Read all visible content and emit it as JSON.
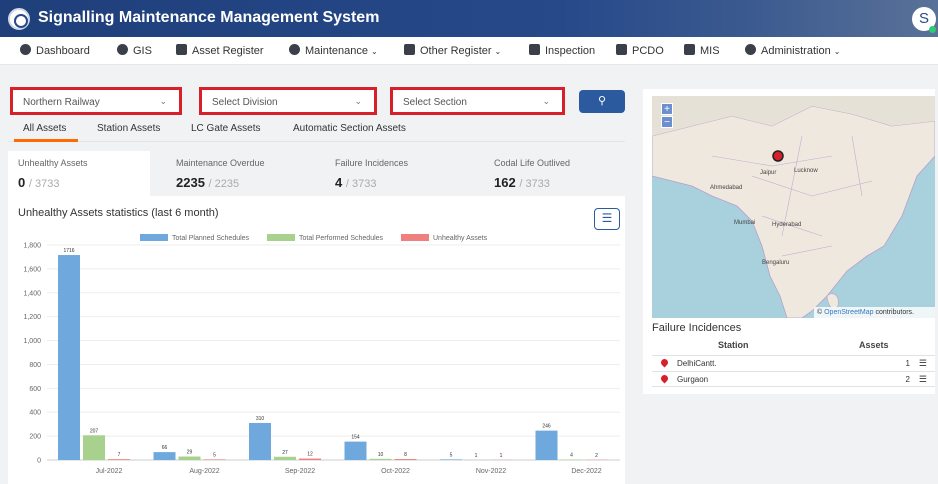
{
  "header": {
    "title": "Signalling Maintenance Management System",
    "user_initial": "S"
  },
  "nav": {
    "items": [
      {
        "label": "Dashboard",
        "icon": "dashboard-icon"
      },
      {
        "label": "GIS",
        "icon": "map-pin-icon"
      },
      {
        "label": "Asset Register",
        "icon": "tools-icon"
      },
      {
        "label": "Maintenance",
        "icon": "gear-icon",
        "dropdown": true
      },
      {
        "label": "Other Register",
        "icon": "tools-icon",
        "dropdown": true
      },
      {
        "label": "Inspection",
        "icon": "checkbox-icon"
      },
      {
        "label": "PCDO",
        "icon": "document-icon"
      },
      {
        "label": "MIS",
        "icon": "save-icon"
      },
      {
        "label": "Administration",
        "icon": "user-icon",
        "dropdown": true
      }
    ]
  },
  "filters": {
    "railway": "Northern Railway",
    "division": "Select Division",
    "section": "Select Section"
  },
  "tabs": [
    "All Assets",
    "Station Assets",
    "LC Gate Assets",
    "Automatic Section Assets"
  ],
  "stats": [
    {
      "label": "Unhealthy Assets",
      "value": "0",
      "total": "/ 3733"
    },
    {
      "label": "Maintenance Overdue",
      "value": "2235",
      "total": "/ 2235"
    },
    {
      "label": "Failure Incidences",
      "value": "4",
      "total": "/ 3733"
    },
    {
      "label": "Codal Life Outlived",
      "value": "162",
      "total": "/ 3733"
    }
  ],
  "chart_title": "Unhealthy Assets statistics (last 6 month)",
  "chart_data": {
    "type": "bar",
    "categories": [
      "Jul-2022",
      "Aug-2022",
      "Sep-2022",
      "Oct-2022",
      "Nov-2022",
      "Dec-2022"
    ],
    "series": [
      {
        "name": "Total Planned Schedules",
        "color": "#6fa8dc",
        "values": [
          1716,
          66,
          310,
          154,
          5,
          246
        ]
      },
      {
        "name": "Total Performed Schedules",
        "color": "#a9d18e",
        "values": [
          207,
          29,
          27,
          10,
          1,
          4
        ]
      },
      {
        "name": "Unhealthy Assets",
        "color": "#f08080",
        "values": [
          7,
          5,
          12,
          8,
          1,
          2
        ]
      }
    ],
    "yticks": [
      "0",
      "200",
      "400",
      "600",
      "800",
      "1,000",
      "1,200",
      "1,400",
      "1,600",
      "1,800"
    ],
    "ylim": [
      0,
      1800
    ],
    "legend": "top"
  },
  "map": {
    "attribution_link": "OpenStreetMap",
    "attribution_rest": " contributors.",
    "zoom_in": "+",
    "zoom_out": "−",
    "labels": [
      {
        "text": "Jaipur"
      },
      {
        "text": "Lucknow"
      },
      {
        "text": "Ahmedabad"
      },
      {
        "text": "Mumbai"
      },
      {
        "text": "Hyderabad"
      },
      {
        "text": "Bengaluru"
      }
    ]
  },
  "failure_incidences": {
    "title": "Failure Incidences",
    "col_station": "Station",
    "col_assets": "Assets",
    "rows": [
      {
        "station": "DelhiCantt.",
        "assets": "1"
      },
      {
        "station": "Gurgaon",
        "assets": "2"
      }
    ]
  }
}
